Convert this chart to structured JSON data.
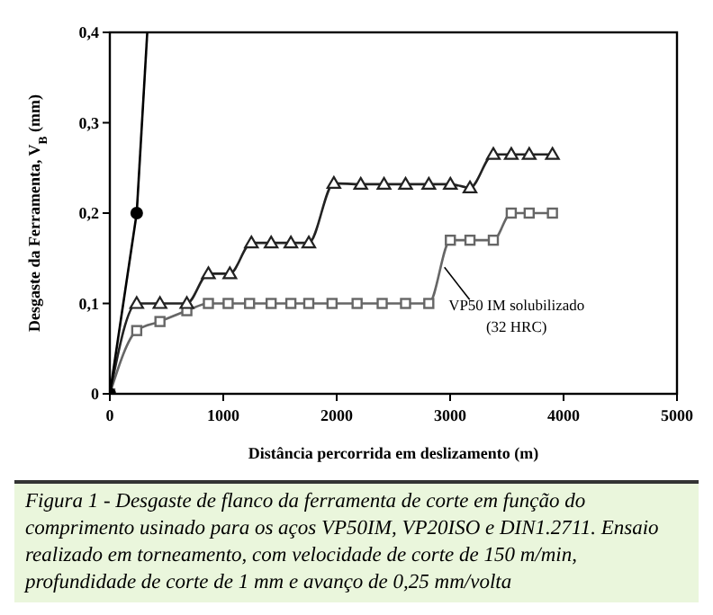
{
  "chart_data": {
    "type": "line",
    "xlabel": "Distância percorrida em deslizamento (m)",
    "ylabel": "Desgaste da Ferramenta, V$_{B}$ (mm)",
    "xlim": [
      0,
      5000
    ],
    "xticks": [
      0,
      1000,
      2000,
      3000,
      4000,
      5000
    ],
    "ylim": [
      0,
      0.4
    ],
    "yticks": [
      0,
      {
        "value": 0.1,
        "label": "0,1"
      },
      {
        "value": 0.2,
        "label": "0,2"
      },
      {
        "value": 0.3,
        "label": "0,3"
      },
      {
        "value": 0.4,
        "label": "0,4"
      }
    ],
    "grid": false,
    "line_style": "solid",
    "series": [
      {
        "color": "#000000",
        "marker": "circle",
        "x": [
          0,
          237
        ],
        "values": [
          0,
          0.2
        ]
      },
      {
        "color": "#000000",
        "marker": "none",
        "x": [
          237,
          330
        ],
        "values": [
          0.2,
          0.4
        ]
      },
      {
        "color": "#222222",
        "marker": "triangle",
        "x": [
          0,
          237,
          442,
          679,
          869,
          1058,
          1248,
          1422,
          1596,
          1754,
          1975,
          2212,
          2417,
          2607,
          2812,
          3002,
          3175,
          3381,
          3539,
          3697,
          3902
        ],
        "values": [
          0,
          0.1,
          0.1,
          0.1,
          0.133,
          0.133,
          0.167,
          0.167,
          0.167,
          0.167,
          0.233,
          0.232,
          0.232,
          0.232,
          0.232,
          0.232,
          0.228,
          0.265,
          0.265,
          0.265,
          0.265
        ]
      },
      {
        "color": "#666666",
        "marker": "square",
        "x": [
          0,
          237,
          442,
          679,
          869,
          1043,
          1232,
          1422,
          1596,
          1754,
          1959,
          2180,
          2401,
          2607,
          2812,
          3002,
          3175,
          3381,
          3539,
          3697,
          3902
        ],
        "values": [
          0,
          0.07,
          0.08,
          0.092,
          0.1,
          0.1,
          0.1,
          0.1,
          0.1,
          0.1,
          0.1,
          0.1,
          0.1,
          0.1,
          0.1,
          0.17,
          0.17,
          0.17,
          0.2,
          0.2,
          0.2
        ]
      }
    ],
    "annotations": [
      {
        "text": "VP50 IM solubilizado\n(32 HRC)",
        "x": 2950,
        "y": 0.14
      },
      "Figura 1 - Desgaste de flanco da ferramenta de corte em função do comprimento usinado para os aços VP50IM, VP20ISO e DIN1.2711. Ensaio realizado em torneamento, com velocidade de corte de 150 m/min, profundidade de corte de 1 mm e avanço de 0,25 mm/volta"
    ]
  }
}
